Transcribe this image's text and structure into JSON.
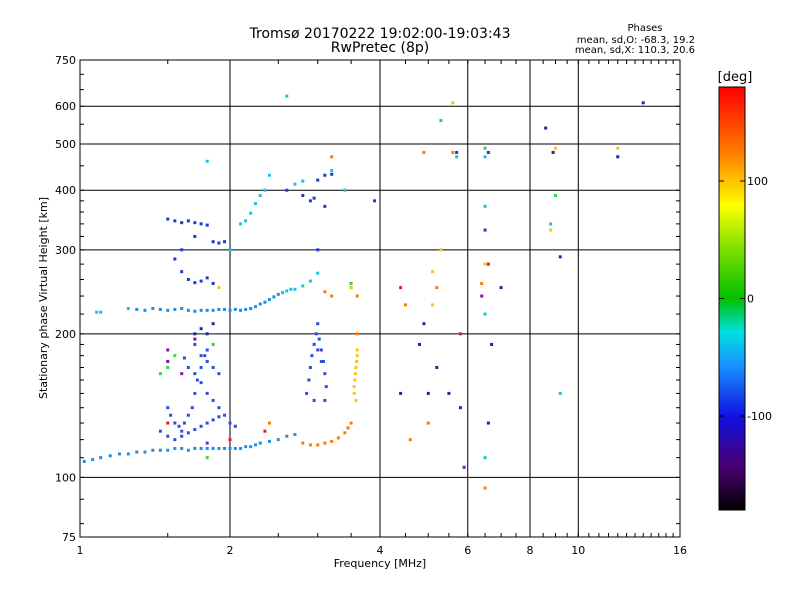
{
  "chart_data": {
    "type": "scatter",
    "title": "Tromsø 20170222 19:02:00-19:03:43",
    "subtitle": "RwPretec (8p)",
    "xlabel": "Frequency [MHz]",
    "ylabel": "Stationary phase Virtual Height [km]",
    "x_scale": "log",
    "y_scale": "log",
    "xlim": [
      1,
      16
    ],
    "ylim": [
      75,
      750
    ],
    "grid": true,
    "x_ticks": [
      1,
      2,
      4,
      6,
      8,
      10,
      16
    ],
    "x_tick_labels": [
      "1",
      "2",
      "4",
      "6",
      "8",
      "10",
      "16"
    ],
    "y_ticks": [
      75,
      100,
      200,
      300,
      400,
      500,
      600,
      750
    ],
    "y_tick_labels": [
      "75",
      "100",
      "200",
      "300",
      "400",
      "500",
      "600",
      "750"
    ],
    "phases_panel": {
      "title": "Phases",
      "line_o": "mean, sd,O: -68.3, 19.2",
      "line_x": "mean, sd,X: 110.3, 20.6"
    },
    "colorbar": {
      "label": "[deg]",
      "range": [
        -180,
        180
      ],
      "tick_values": [
        100,
        0,
        -100
      ],
      "tick_labels": [
        "100",
        "0",
        "-100"
      ]
    },
    "series": [
      {
        "name": "",
        "color": "#1f8fe6",
        "points": [
          [
            1.02,
            108
          ],
          [
            1.06,
            109
          ],
          [
            1.1,
            110
          ],
          [
            1.15,
            111
          ],
          [
            1.2,
            112
          ],
          [
            1.25,
            112
          ],
          [
            1.3,
            113
          ],
          [
            1.35,
            113
          ],
          [
            1.4,
            114
          ],
          [
            1.45,
            114
          ],
          [
            1.5,
            114
          ],
          [
            1.55,
            115
          ],
          [
            1.6,
            115
          ],
          [
            1.65,
            114
          ],
          [
            1.7,
            115
          ],
          [
            1.75,
            115
          ],
          [
            1.8,
            115
          ],
          [
            1.85,
            115
          ],
          [
            1.9,
            115
          ],
          [
            1.95,
            115
          ],
          [
            2.0,
            115
          ],
          [
            2.05,
            115
          ],
          [
            2.1,
            115
          ],
          [
            2.15,
            116
          ],
          [
            2.2,
            116
          ],
          [
            2.25,
            117
          ],
          [
            2.3,
            118
          ],
          [
            2.4,
            119
          ],
          [
            2.5,
            120
          ],
          [
            2.6,
            122
          ],
          [
            2.7,
            123
          ],
          [
            1.3,
            225
          ],
          [
            1.35,
            224
          ],
          [
            1.4,
            226
          ],
          [
            1.45,
            225
          ],
          [
            1.5,
            224
          ],
          [
            1.55,
            225
          ],
          [
            1.6,
            226
          ],
          [
            1.65,
            224
          ],
          [
            1.7,
            223
          ],
          [
            1.75,
            224
          ],
          [
            1.8,
            224
          ],
          [
            1.85,
            224
          ],
          [
            1.9,
            225
          ],
          [
            1.95,
            225
          ],
          [
            2.0,
            224
          ],
          [
            2.05,
            225
          ],
          [
            2.1,
            224
          ],
          [
            2.15,
            225
          ],
          [
            2.2,
            226
          ],
          [
            2.25,
            228
          ],
          [
            2.3,
            231
          ],
          [
            2.35,
            233
          ],
          [
            2.4,
            236
          ],
          [
            2.45,
            239
          ],
          [
            2.5,
            242
          ]
        ]
      },
      {
        "name": "",
        "color": "#16c4e0",
        "points": [
          [
            1.08,
            222
          ],
          [
            1.1,
            222
          ],
          [
            1.25,
            226
          ],
          [
            2.55,
            244
          ],
          [
            2.6,
            246
          ],
          [
            2.65,
            248
          ],
          [
            2.7,
            248
          ],
          [
            2.8,
            252
          ],
          [
            2.9,
            258
          ],
          [
            3.0,
            268
          ],
          [
            2.1,
            340
          ],
          [
            2.15,
            345
          ],
          [
            2.2,
            358
          ],
          [
            2.25,
            375
          ],
          [
            2.3,
            390
          ],
          [
            2.35,
            400
          ],
          [
            2.4,
            430
          ],
          [
            2.7,
            412
          ],
          [
            2.8,
            418
          ],
          [
            3.4,
            400
          ],
          [
            3.2,
            440
          ],
          [
            1.8,
            460
          ],
          [
            2.0,
            300
          ],
          [
            2.6,
            630
          ],
          [
            5.3,
            560
          ],
          [
            5.7,
            470
          ],
          [
            6.5,
            470
          ],
          [
            6.5,
            370
          ],
          [
            6.5,
            220
          ],
          [
            6.7,
            190
          ],
          [
            8.8,
            340
          ],
          [
            9.2,
            150
          ],
          [
            6.5,
            110
          ]
        ]
      },
      {
        "name": "",
        "color": "#1a3ad8",
        "points": [
          [
            1.5,
            348
          ],
          [
            1.55,
            345
          ],
          [
            1.6,
            342
          ],
          [
            1.65,
            345
          ],
          [
            1.7,
            342
          ],
          [
            1.75,
            340
          ],
          [
            1.8,
            338
          ],
          [
            1.85,
            312
          ],
          [
            1.9,
            310
          ],
          [
            1.95,
            312
          ],
          [
            1.55,
            287
          ],
          [
            1.6,
            270
          ],
          [
            1.65,
            260
          ],
          [
            1.7,
            256
          ],
          [
            1.75,
            258
          ],
          [
            1.8,
            262
          ],
          [
            1.85,
            255
          ],
          [
            1.6,
            300
          ],
          [
            1.7,
            320
          ],
          [
            2.9,
            380
          ],
          [
            3.0,
            420
          ],
          [
            3.1,
            430
          ],
          [
            3.2,
            432
          ],
          [
            3.9,
            380
          ],
          [
            2.6,
            400
          ],
          [
            2.8,
            390
          ],
          [
            2.95,
            385
          ],
          [
            3.1,
            370
          ],
          [
            3.0,
            300
          ],
          [
            6.5,
            330
          ],
          [
            6.6,
            480
          ],
          [
            5.7,
            480
          ]
        ]
      },
      {
        "name": "",
        "color": "#2a4fe0",
        "points": [
          [
            1.5,
            140
          ],
          [
            1.52,
            135
          ],
          [
            1.55,
            130
          ],
          [
            1.58,
            128
          ],
          [
            1.6,
            125
          ],
          [
            1.62,
            130
          ],
          [
            1.65,
            135
          ],
          [
            1.68,
            140
          ],
          [
            1.7,
            150
          ],
          [
            1.72,
            160
          ],
          [
            1.75,
            170
          ],
          [
            1.78,
            180
          ],
          [
            1.8,
            185
          ],
          [
            1.62,
            178
          ],
          [
            1.65,
            170
          ],
          [
            1.7,
            165
          ],
          [
            1.75,
            158
          ],
          [
            1.8,
            150
          ],
          [
            1.85,
            145
          ],
          [
            1.9,
            140
          ],
          [
            1.95,
            135
          ],
          [
            2.0,
            130
          ],
          [
            1.55,
            120
          ],
          [
            1.6,
            122
          ],
          [
            1.65,
            124
          ],
          [
            1.7,
            126
          ],
          [
            1.75,
            128
          ],
          [
            1.8,
            130
          ],
          [
            1.85,
            132
          ],
          [
            1.9,
            134
          ],
          [
            1.7,
            190
          ],
          [
            1.75,
            180
          ],
          [
            1.8,
            175
          ],
          [
            1.85,
            170
          ],
          [
            1.9,
            165
          ],
          [
            2.85,
            150
          ],
          [
            2.88,
            160
          ],
          [
            2.9,
            170
          ],
          [
            2.92,
            180
          ],
          [
            2.95,
            190
          ],
          [
            2.98,
            200
          ],
          [
            3.0,
            210
          ],
          [
            3.02,
            195
          ],
          [
            3.05,
            185
          ],
          [
            3.08,
            175
          ],
          [
            3.1,
            165
          ],
          [
            3.12,
            155
          ],
          [
            3.0,
            185
          ],
          [
            3.05,
            175
          ],
          [
            2.95,
            145
          ],
          [
            3.1,
            145
          ],
          [
            1.45,
            125
          ],
          [
            1.5,
            122
          ],
          [
            1.8,
            118
          ],
          [
            2.05,
            128
          ]
        ]
      },
      {
        "name": "",
        "color": "#ff7a00",
        "points": [
          [
            2.8,
            118
          ],
          [
            2.9,
            117
          ],
          [
            3.0,
            117
          ],
          [
            3.1,
            118
          ],
          [
            3.2,
            119
          ],
          [
            3.3,
            121
          ],
          [
            3.4,
            124
          ],
          [
            3.45,
            127
          ],
          [
            3.5,
            130
          ],
          [
            3.1,
            245
          ],
          [
            3.2,
            240
          ],
          [
            3.5,
            250
          ],
          [
            3.6,
            240
          ],
          [
            3.2,
            470
          ],
          [
            4.9,
            480
          ],
          [
            5.6,
            480
          ],
          [
            6.4,
            255
          ],
          [
            6.5,
            95
          ],
          [
            5.2,
            250
          ],
          [
            4.5,
            230
          ],
          [
            5.0,
            130
          ],
          [
            4.6,
            120
          ],
          [
            2.4,
            130
          ],
          [
            3.6,
            200
          ]
        ]
      },
      {
        "name": "",
        "color": "#ffc21a",
        "points": [
          [
            3.55,
            150
          ],
          [
            3.55,
            155
          ],
          [
            3.56,
            160
          ],
          [
            3.57,
            165
          ],
          [
            3.58,
            170
          ],
          [
            3.59,
            175
          ],
          [
            3.6,
            180
          ],
          [
            3.6,
            185
          ],
          [
            3.58,
            145
          ],
          [
            3.5,
            250
          ],
          [
            3.5,
            255
          ],
          [
            5.1,
            270
          ],
          [
            5.3,
            300
          ],
          [
            5.1,
            230
          ],
          [
            6.5,
            280
          ],
          [
            8.8,
            330
          ],
          [
            9.0,
            490
          ],
          [
            12.0,
            490
          ],
          [
            5.6,
            610
          ],
          [
            1.9,
            250
          ]
        ]
      },
      {
        "name": "",
        "color": "#1b2aa0",
        "points": [
          [
            1.7,
            200
          ],
          [
            1.75,
            205
          ],
          [
            1.8,
            200
          ],
          [
            1.85,
            210
          ],
          [
            4.4,
            150
          ],
          [
            4.8,
            190
          ],
          [
            5.0,
            150
          ],
          [
            5.2,
            170
          ],
          [
            5.5,
            150
          ],
          [
            5.8,
            140
          ],
          [
            6.6,
            130
          ],
          [
            4.9,
            210
          ],
          [
            6.7,
            190
          ],
          [
            7.0,
            250
          ],
          [
            8.6,
            540
          ],
          [
            8.9,
            480
          ],
          [
            13.5,
            610
          ],
          [
            12.0,
            470
          ],
          [
            9.2,
            290
          ]
        ]
      },
      {
        "name": "",
        "color": "#2ed84a",
        "points": [
          [
            1.5,
            170
          ],
          [
            1.45,
            165
          ],
          [
            1.55,
            180
          ],
          [
            1.85,
            190
          ],
          [
            3.5,
            255
          ],
          [
            6.5,
            490
          ],
          [
            9.0,
            390
          ],
          [
            1.8,
            110
          ]
        ]
      },
      {
        "name": "",
        "color": "#e61a1a",
        "points": [
          [
            1.5,
            130
          ],
          [
            2.35,
            125
          ],
          [
            6.6,
            280
          ],
          [
            4.4,
            250
          ],
          [
            5.8,
            200
          ],
          [
            2.0,
            120
          ]
        ]
      },
      {
        "name": "",
        "color": "#7a1aa0",
        "points": [
          [
            1.5,
            175
          ],
          [
            1.6,
            165
          ],
          [
            1.5,
            185
          ],
          [
            1.7,
            195
          ],
          [
            5.9,
            105
          ],
          [
            6.4,
            240
          ]
        ]
      }
    ]
  }
}
